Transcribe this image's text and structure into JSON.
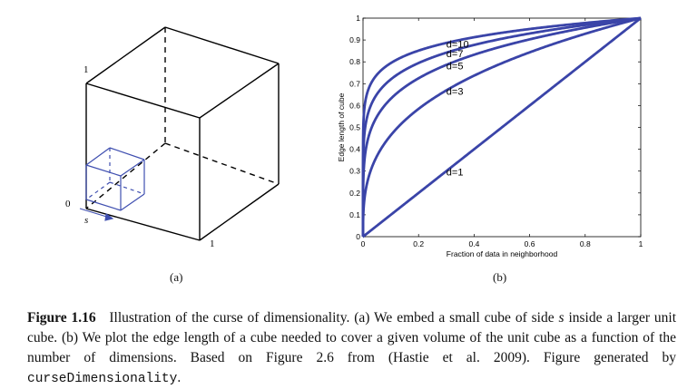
{
  "panel_a": {
    "label": "(a)",
    "corner_label_top": "1",
    "corner_label_origin": "0",
    "corner_label_right": "1",
    "side_label": "s",
    "cube_color": "#000000",
    "small_cube_color": "#3f4fb0"
  },
  "panel_b": {
    "label": "(b)"
  },
  "chart_data": {
    "type": "line",
    "title": "",
    "xlabel": "Fraction of data in neighborhood",
    "ylabel": "Edge length of cube",
    "xlim": [
      0,
      1
    ],
    "ylim": [
      0,
      1
    ],
    "xticks": [
      "0",
      "0.2",
      "0.4",
      "0.6",
      "0.8",
      "1"
    ],
    "yticks": [
      "0",
      "0.1",
      "0.2",
      "0.3",
      "0.4",
      "0.5",
      "0.6",
      "0.7",
      "0.8",
      "0.9",
      "1"
    ],
    "grid": false,
    "line_color": "#3a44a8",
    "function": "edge length = fraction^(1/d)",
    "series": [
      {
        "name": "d=1",
        "d": 1,
        "x": [
          0,
          0.1,
          0.2,
          0.3,
          0.4,
          0.5,
          0.6,
          0.7,
          0.8,
          0.9,
          1
        ],
        "values": [
          0,
          0.1,
          0.2,
          0.3,
          0.4,
          0.5,
          0.6,
          0.7,
          0.8,
          0.9,
          1
        ]
      },
      {
        "name": "d=3",
        "d": 3,
        "x": [
          0,
          0.1,
          0.2,
          0.3,
          0.4,
          0.5,
          0.6,
          0.7,
          0.8,
          0.9,
          1
        ],
        "values": [
          0,
          0.46,
          0.58,
          0.67,
          0.74,
          0.79,
          0.84,
          0.89,
          0.93,
          0.97,
          1
        ]
      },
      {
        "name": "d=5",
        "d": 5,
        "x": [
          0,
          0.1,
          0.2,
          0.3,
          0.4,
          0.5,
          0.6,
          0.7,
          0.8,
          0.9,
          1
        ],
        "values": [
          0,
          0.63,
          0.72,
          0.79,
          0.83,
          0.87,
          0.9,
          0.93,
          0.96,
          0.98,
          1
        ]
      },
      {
        "name": "d=7",
        "d": 7,
        "x": [
          0,
          0.1,
          0.2,
          0.3,
          0.4,
          0.5,
          0.6,
          0.7,
          0.8,
          0.9,
          1
        ],
        "values": [
          0,
          0.72,
          0.79,
          0.84,
          0.88,
          0.91,
          0.93,
          0.95,
          0.97,
          0.98,
          1
        ]
      },
      {
        "name": "d=10",
        "d": 10,
        "x": [
          0,
          0.1,
          0.2,
          0.3,
          0.4,
          0.5,
          0.6,
          0.7,
          0.8,
          0.9,
          1
        ],
        "values": [
          0,
          0.79,
          0.85,
          0.89,
          0.91,
          0.93,
          0.95,
          0.96,
          0.98,
          0.99,
          1
        ]
      }
    ],
    "annotations": [
      "d=10",
      "d=7",
      "d=5",
      "d=3",
      "d=1"
    ]
  },
  "caption": {
    "figure_label": "Figure 1.16",
    "text_1": "Illustration of the curse of dimensionality. (a) We embed a small cube of side ",
    "s_var": "s",
    "text_2": " inside a larger unit cube. (b) We plot the edge length of a cube needed to cover a given volume of the unit cube as a function of the number of dimensions. Based on Figure 2.6 from (Hastie et al. 2009). Figure generated by ",
    "code": "curseDimensionality",
    "text_3": "."
  }
}
